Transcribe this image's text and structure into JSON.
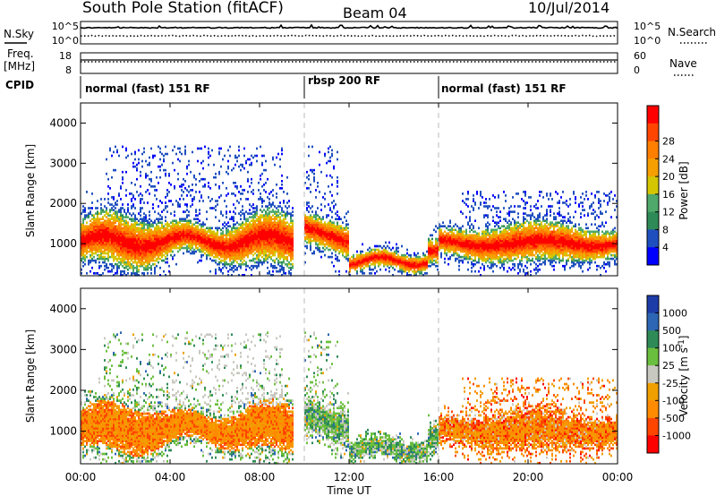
{
  "header": {
    "station": "South Pole Station (fitACF)",
    "beam": "Beam 04",
    "date": "10/Jul/2014"
  },
  "left_labels": {
    "nsky": "N.Sky",
    "freq": "Freq.",
    "mhz": "[MHz]",
    "cpid": "CPID"
  },
  "right_labels": {
    "nsearch": "N.Search",
    "nave": "Nave"
  },
  "cpid_segments": [
    {
      "label": "normal (fast) 151 RF",
      "start_hr": 0
    },
    {
      "label": "rbsp 200 RF",
      "start_hr": 10
    },
    {
      "label": "normal (fast) 151 RF",
      "start_hr": 16
    }
  ],
  "colors": {
    "power": [
      "#0000ff",
      "#1f4fbf",
      "#2e8b57",
      "#4fa96a",
      "#d4c600",
      "#f5a000",
      "#ff7f00",
      "#ff4500",
      "#ff0000"
    ],
    "velocity": [
      "#1e3ca8",
      "#2c66b4",
      "#2e8b57",
      "#6bbf3e",
      "#c8c8c0",
      "#f0a000",
      "#ff8c00",
      "#ff4500",
      "#ff0000"
    ]
  },
  "chart_data": [
    {
      "type": "line",
      "name": "noise-panel",
      "left_axis_ticks": [
        "10^5",
        "10^0"
      ],
      "right_axis_ticks": [
        "10^5",
        "10^0"
      ],
      "x_range_hr": [
        0,
        24
      ]
    },
    {
      "type": "line",
      "name": "freq-nave-panel",
      "left_axis_ticks": [
        "18",
        "8"
      ],
      "right_axis_ticks": [
        "60",
        "0"
      ],
      "x_range_hr": [
        0,
        24
      ]
    },
    {
      "type": "heatmap",
      "name": "power-panel",
      "ylabel": "Slant Range [km]",
      "y_ticks": [
        1000,
        2000,
        3000,
        4000
      ],
      "ylim": [
        200,
        4500
      ],
      "xlim_hr": [
        0,
        24
      ],
      "colorbar": {
        "label": "Power [dB]",
        "ticks": [
          "4",
          "8",
          "12",
          "16",
          "20",
          "24",
          "28"
        ]
      }
    },
    {
      "type": "heatmap",
      "name": "velocity-panel",
      "ylabel": "Slant Range [km]",
      "y_ticks": [
        1000,
        2000,
        3000,
        4000
      ],
      "ylim": [
        200,
        4500
      ],
      "xlim_hr": [
        0,
        24
      ],
      "colorbar": {
        "label": "Velocity",
        "unit": "[m s",
        "unit_exp": "-1",
        "unit_end": "]",
        "ticks": [
          "1000",
          "500",
          "100",
          "25",
          "-25",
          "-100",
          "-500",
          "-1000"
        ]
      }
    }
  ],
  "x_axis": {
    "label": "Time UT",
    "ticks": [
      "00:00",
      "04:00",
      "08:00",
      "12:00",
      "16:00",
      "20:00",
      "00:00"
    ]
  }
}
